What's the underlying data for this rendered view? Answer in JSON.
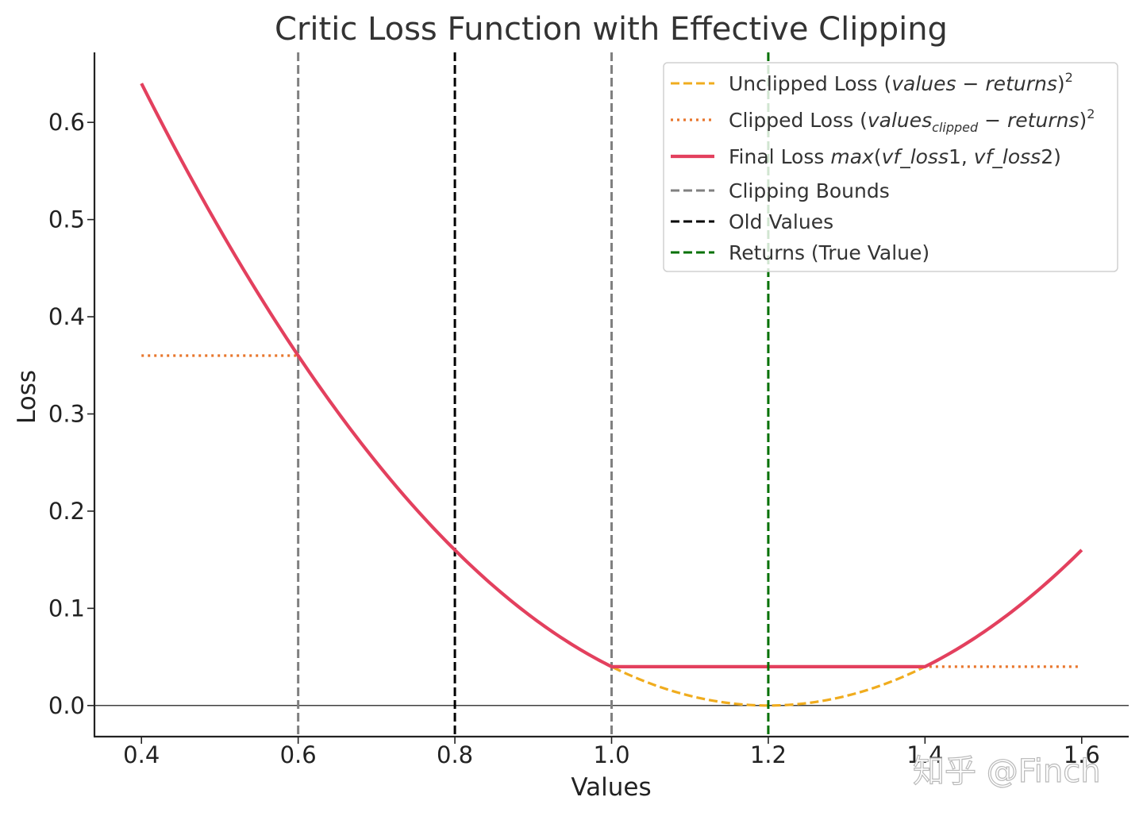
{
  "chart_data": {
    "type": "line",
    "title": "Critic Loss Function with Effective Clipping",
    "xlabel": "Values",
    "ylabel": "Loss",
    "xlim": [
      0.34,
      1.66
    ],
    "ylim": [
      -0.032,
      0.672
    ],
    "xticks": [
      0.4,
      0.6,
      0.8,
      1.0,
      1.2,
      1.4,
      1.6
    ],
    "xtick_labels": [
      "0.4",
      "0.6",
      "0.8",
      "1.0",
      "1.2",
      "1.4",
      "1.6"
    ],
    "yticks": [
      0.0,
      0.1,
      0.2,
      0.3,
      0.4,
      0.5,
      0.6
    ],
    "ytick_labels": [
      "0.0",
      "0.1",
      "0.2",
      "0.3",
      "0.4",
      "0.5",
      "0.6"
    ],
    "hline_y": 0.0,
    "returns": 1.2,
    "old_values": 0.8,
    "clip_bounds": [
      0.6,
      1.0
    ],
    "x_range": [
      0.4,
      1.6
    ],
    "series": [
      {
        "name": "unclipped",
        "legend_main": "Unclipped Loss (",
        "legend_it": "values",
        "legend_mid": " − ",
        "legend_it2": "returns",
        "legend_end": ")",
        "legend_sup": "2",
        "color": "#f0ac1e",
        "style": "dashed"
      },
      {
        "name": "clipped",
        "legend_main": "Clipped Loss (",
        "legend_it": "values",
        "legend_sub": "clipped",
        "legend_mid": " − ",
        "legend_it2": "returns",
        "legend_end": ")",
        "legend_sup": "2",
        "color": "#e8762c",
        "style": "dotted"
      },
      {
        "name": "final",
        "legend_main": "Final Loss ",
        "legend_it": "max",
        "legend_mid": "(",
        "legend_it2": "vf_loss",
        "legend_num": "1, ",
        "legend_it3": "vf_loss",
        "legend_num2": "2)",
        "color": "#e3405e",
        "style": "solid"
      }
    ],
    "vlines": [
      {
        "name": "clipping-bounds",
        "label": "Clipping Bounds",
        "color": "#808080"
      },
      {
        "name": "old-values",
        "label": "Old Values",
        "color": "#000000"
      },
      {
        "name": "returns",
        "label": "Returns (True Value)",
        "color": "#007000"
      }
    ],
    "legend_position": "upper-right"
  },
  "watermark": "知乎 @Finch"
}
